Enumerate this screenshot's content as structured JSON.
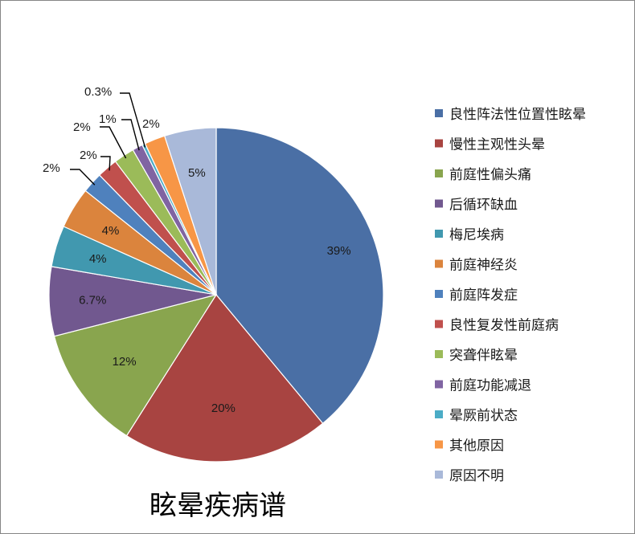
{
  "chart_data": {
    "type": "pie",
    "title": "眩晕疾病谱",
    "legend_position": "right",
    "slices": [
      {
        "label": "良性阵法性位置性眩晕",
        "value": 39,
        "display": "39%",
        "color": "#4A6FA5"
      },
      {
        "label": "慢性主观性头晕",
        "value": 20,
        "display": "20%",
        "color": "#A84441"
      },
      {
        "label": "前庭性偏头痛",
        "value": 12,
        "display": "12%",
        "color": "#89A54E"
      },
      {
        "label": "后循环缺血",
        "value": 6.7,
        "display": "6.7%",
        "color": "#71588F"
      },
      {
        "label": "梅尼埃病",
        "value": 4,
        "display": "4%",
        "color": "#4198AF"
      },
      {
        "label": "前庭神经炎",
        "value": 4,
        "display": "4%",
        "color": "#DB843D"
      },
      {
        "label": "前庭阵发症",
        "value": 2,
        "display": "2%",
        "color": "#4F81BD"
      },
      {
        "label": "良性复发性前庭病",
        "value": 2,
        "display": "2%",
        "color": "#C0504D"
      },
      {
        "label": "突聋伴眩晕",
        "value": 2,
        "display": "2%",
        "color": "#9BBB59"
      },
      {
        "label": "前庭功能减退",
        "value": 1,
        "display": "1%",
        "color": "#8064A2"
      },
      {
        "label": "晕厥前状态",
        "value": 0.3,
        "display": "0.3%",
        "color": "#4BACC6"
      },
      {
        "label": "其他原因",
        "value": 2,
        "display": "2%",
        "color": "#F79646"
      },
      {
        "label": "原因不明",
        "value": 5,
        "display": "5%",
        "color": "#A9B9D9"
      }
    ]
  }
}
